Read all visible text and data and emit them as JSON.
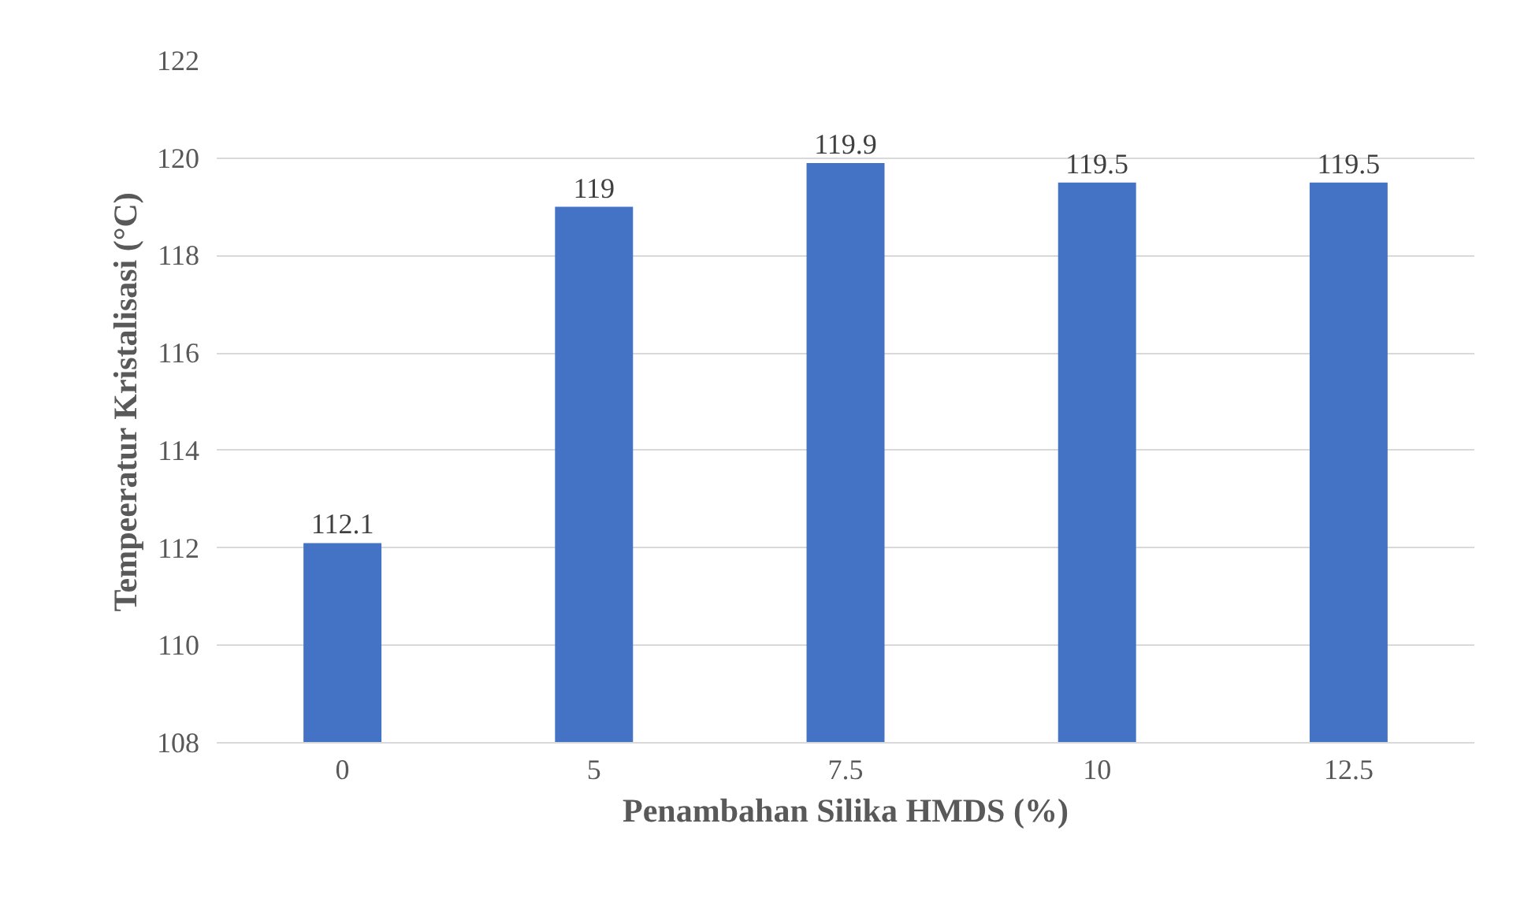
{
  "chart_data": {
    "type": "bar",
    "xlabel": "Penambahan Silika HMDS (%)",
    "ylabel": "Tempeeratur Kristalisasi (°C)",
    "categories": [
      "0",
      "5",
      "7.5",
      "10",
      "12.5"
    ],
    "values": [
      112.1,
      119,
      119.9,
      119.5,
      119.5
    ],
    "color": "#4472c4",
    "ylim": [
      108,
      122
    ],
    "yticks": [
      108,
      110,
      112,
      114,
      116,
      118,
      120,
      122
    ],
    "grid": "y",
    "data_labels": true
  }
}
